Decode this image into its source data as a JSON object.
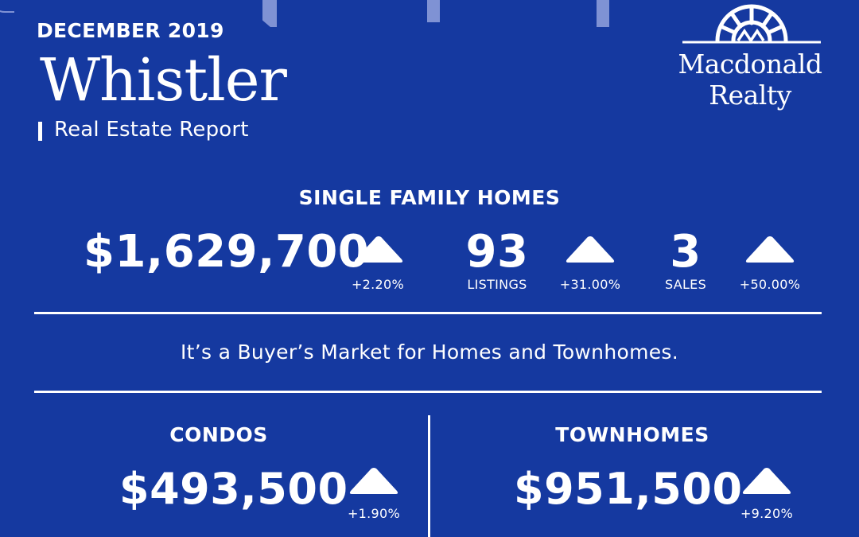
{
  "header": {
    "date": "DECEMBER 2019",
    "city": "Whistler",
    "subtitle": "Real Estate Report"
  },
  "logo": {
    "line1": "Macdonald",
    "line2": "Realty"
  },
  "single_family": {
    "heading": "SINGLE FAMILY HOMES",
    "price": "$1,629,700",
    "price_change": "+2.20%",
    "listings_value": "93",
    "listings_label": "LISTINGS",
    "listings_change": "+31.00%",
    "sales_value": "3",
    "sales_label": "SALES",
    "sales_change": "+50.00%"
  },
  "tagline": "It’s a Buyer’s Market for Homes and Townhomes.",
  "condos": {
    "heading": "CONDOS",
    "price": "$493,500",
    "price_change": "+1.90%"
  },
  "townhomes": {
    "heading": "TOWNHOMES",
    "price": "$951,500",
    "price_change": "+9.20%"
  },
  "colors": {
    "background": "#1539a0",
    "foreground": "#ffffff",
    "accent": "#7f92d4"
  },
  "icons": [
    "up-arrow-icon",
    "macdonald-realty-logo-icon"
  ]
}
